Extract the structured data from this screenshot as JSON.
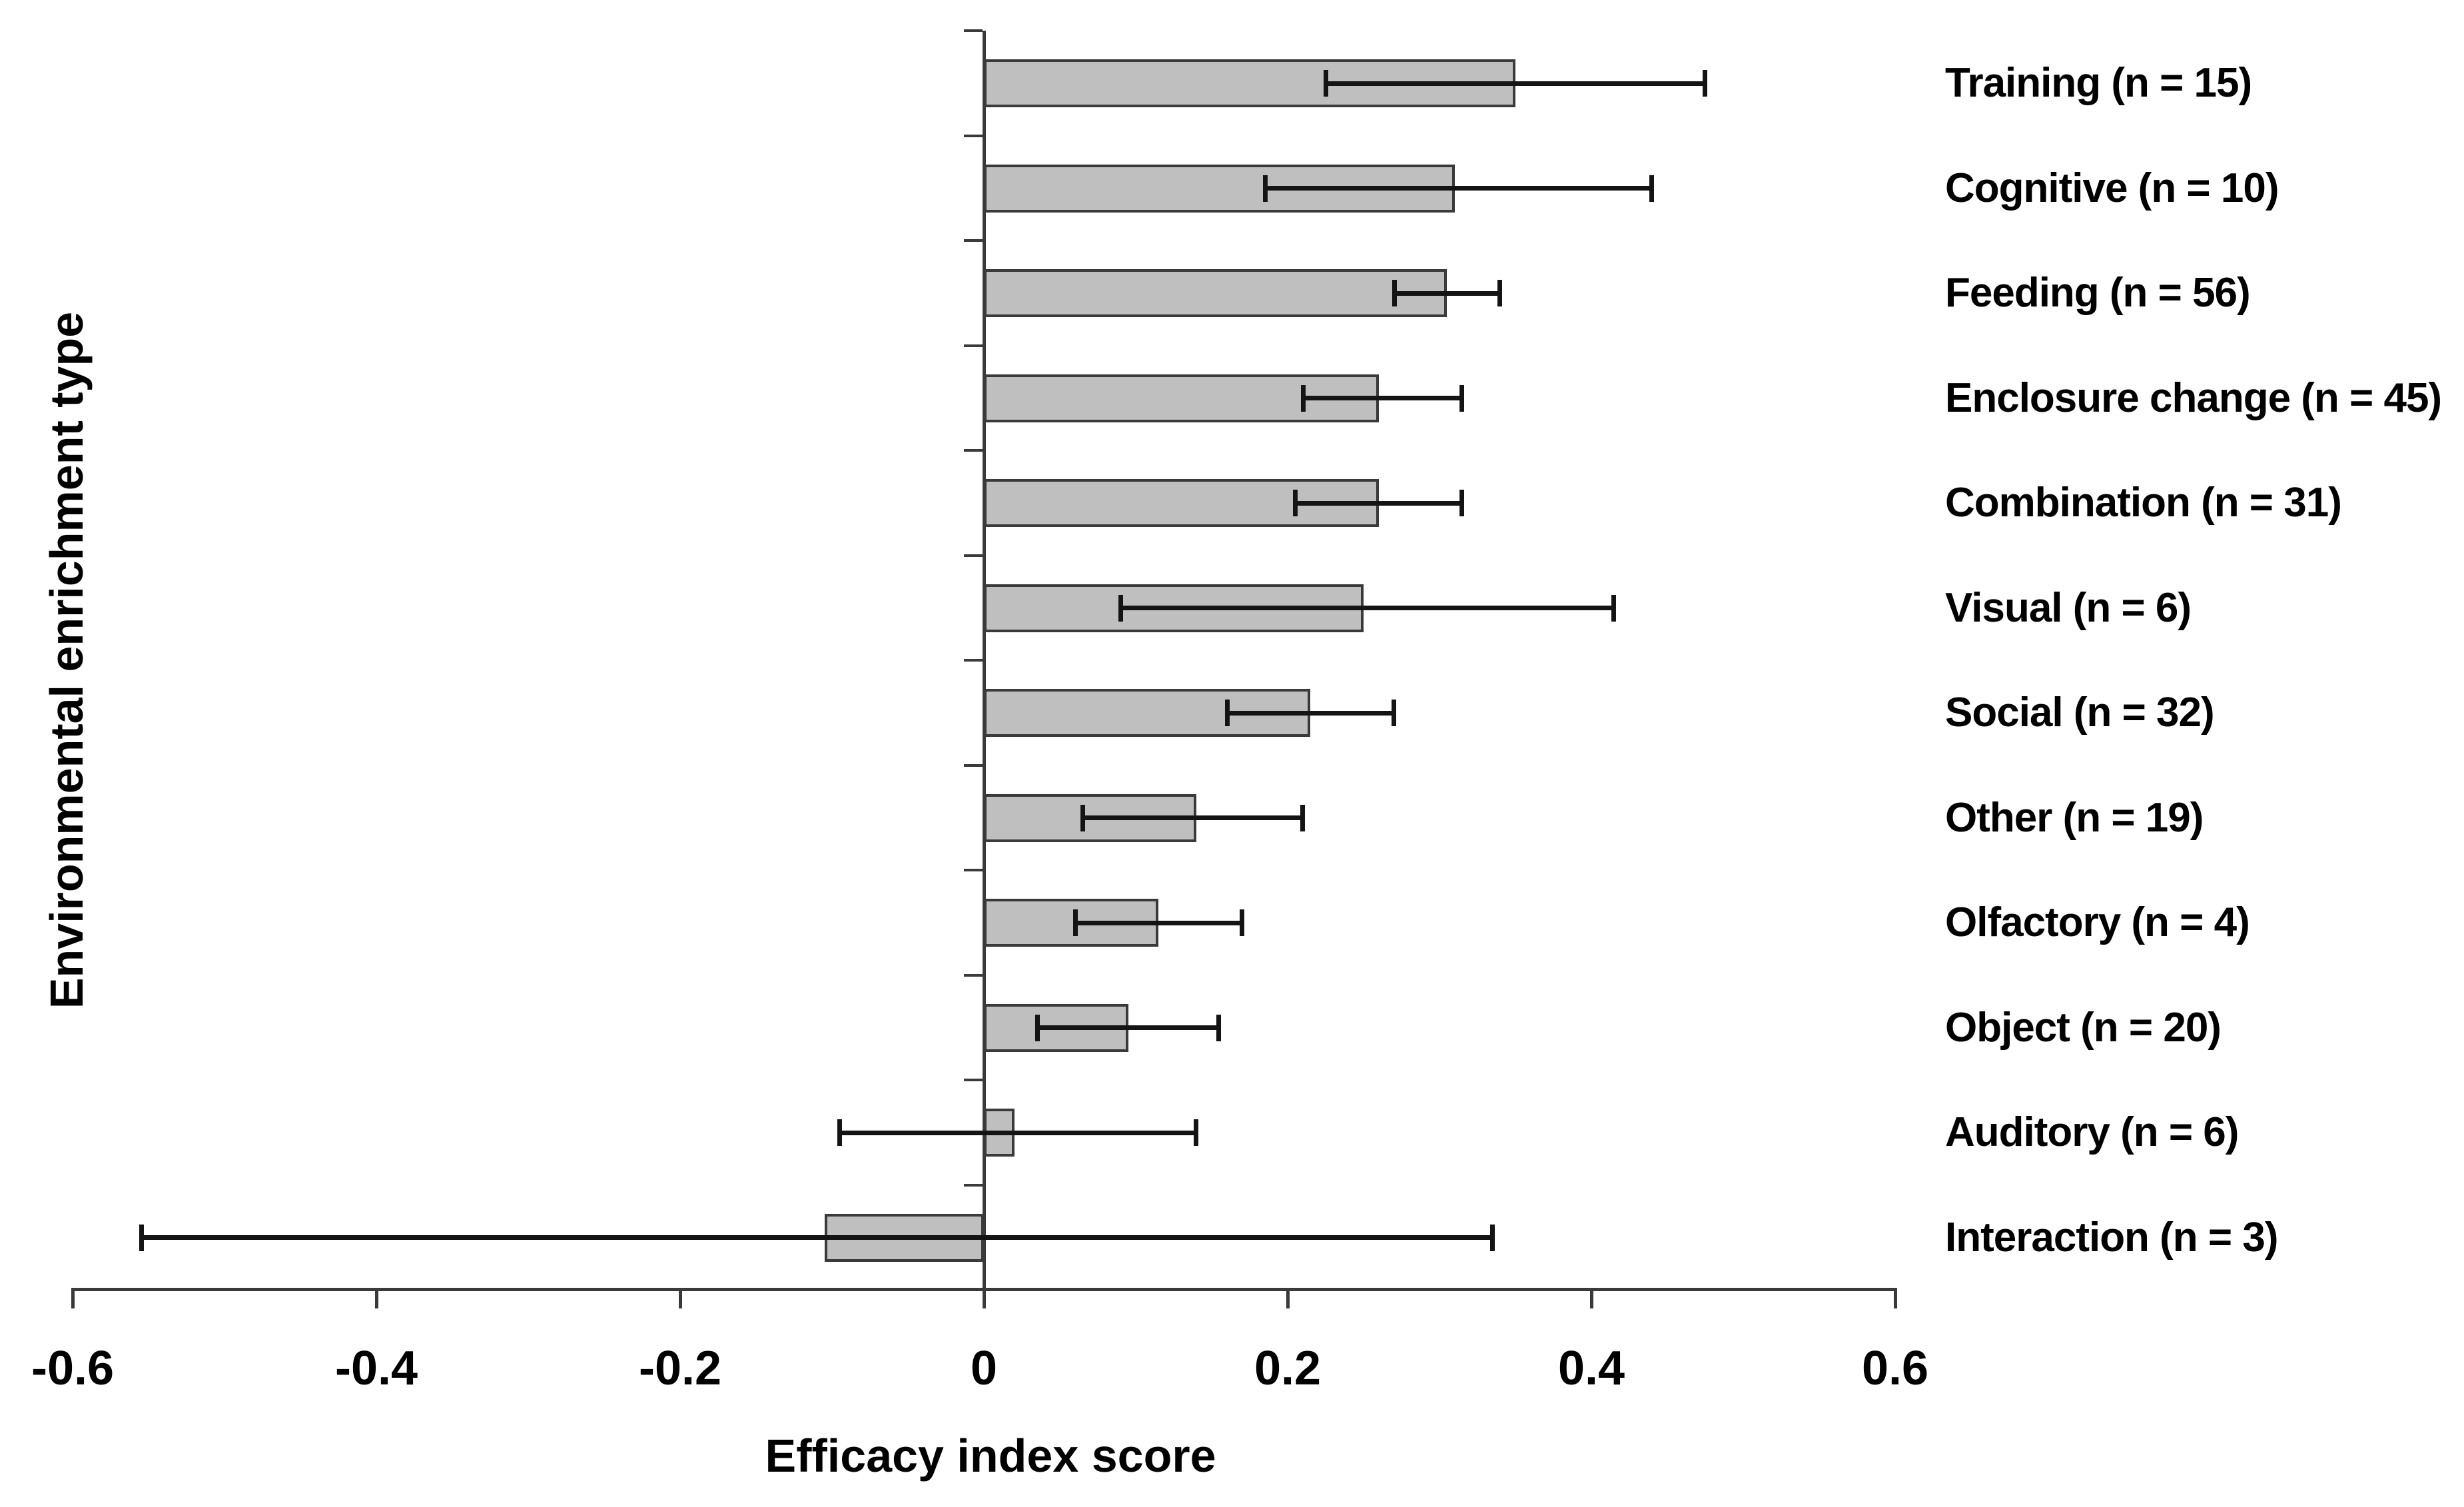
{
  "chart_data": {
    "type": "bar",
    "orientation": "horizontal",
    "title": "",
    "xlabel": "Efficacy index score",
    "ylabel": "Environmental enrichment type",
    "xlim": [
      -0.6,
      0.6
    ],
    "xticks": [
      -0.6,
      -0.4,
      -0.2,
      0,
      0.2,
      0.4,
      0.6
    ],
    "xtick_labels": [
      "-0.6",
      "-0.4",
      "-0.2",
      "0",
      "0.2",
      "0.4",
      "0.6"
    ],
    "grid": false,
    "legend_position": "none",
    "categories": [
      "Training (n = 15)",
      "Cognitive (n = 10)",
      "Feeding (n = 56)",
      "Enclosure change (n = 45)",
      "Combination (n = 31)",
      "Visual (n = 6)",
      "Social (n = 32)",
      "Other (n = 19)",
      "Olfactory (n = 4)",
      "Object (n = 20)",
      "Auditory (n = 6)",
      "Interaction (n = 3)"
    ],
    "sample_sizes": [
      15,
      10,
      56,
      45,
      31,
      6,
      32,
      19,
      4,
      20,
      6,
      3
    ],
    "values": [
      0.35,
      0.31,
      0.305,
      0.26,
      0.26,
      0.25,
      0.215,
      0.14,
      0.115,
      0.095,
      0.02,
      -0.105
    ],
    "error_low": [
      0.225,
      0.185,
      0.27,
      0.21,
      0.205,
      0.09,
      0.16,
      0.065,
      0.06,
      0.035,
      -0.095,
      -0.555
    ],
    "error_high": [
      0.475,
      0.44,
      0.34,
      0.315,
      0.315,
      0.415,
      0.27,
      0.21,
      0.17,
      0.155,
      0.14,
      0.335
    ],
    "colors": {
      "bar_fill": "#bfbfbf",
      "bar_border": "#3a3a3a",
      "error_bar": "#141414",
      "axis": "#3a3a3a",
      "text": "#000000",
      "background": "#ffffff"
    }
  }
}
